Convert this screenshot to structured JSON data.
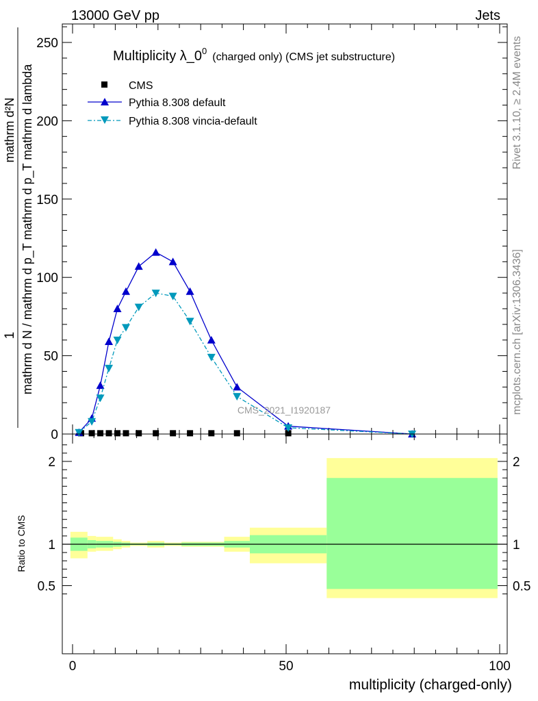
{
  "header": {
    "left": "13000 GeV pp",
    "right": "Jets"
  },
  "side_labels": {
    "rivet": "Rivet 3.1.10, ≥ 2.4M events",
    "mcplots": "mcplots.cern.ch [arXiv:1306.3436]"
  },
  "watermark": "CMS_2021_I1920187",
  "colors": {
    "cms": "#000000",
    "pythia_default": "#0000cc",
    "pythia_vincia": "#0099bb",
    "band_inner": "#99ff99",
    "band_outer": "#ffff99"
  },
  "chart_data": [
    {
      "type": "line",
      "title_main": "Multiplicity λ_0",
      "title_sup": "0",
      "title_rest": "(charged only) (CMS jet substructure)",
      "ylabel_top": "1",
      "ylabel_denom": "mathrm d N / mathrm d p_T mathrm d p_T mathrm d lambda",
      "ylabel_numer": "mathrm d²N",
      "ylim": [
        0,
        262
      ],
      "yticks": [
        0,
        50,
        100,
        150,
        200,
        250
      ],
      "xlim": [
        -2,
        100
      ],
      "legend_position": "top-left",
      "series": [
        {
          "name": "CMS",
          "marker": "square",
          "x": [
            2,
            4.5,
            6.5,
            8.5,
            10.5,
            12.5,
            15.5,
            19.5,
            23.5,
            27.5,
            32.5,
            38.5,
            50.5
          ],
          "y": [
            0.5,
            0.5,
            0.5,
            0.5,
            0.5,
            0.5,
            0.5,
            0.5,
            0.5,
            0.5,
            0.5,
            0.5,
            0.5
          ]
        },
        {
          "name": "Pythia 8.308 default",
          "marker": "triangle-up",
          "x": [
            1.5,
            4.5,
            6.5,
            8.5,
            10.5,
            12.5,
            15.5,
            19.5,
            23.5,
            27.5,
            32.5,
            38.5,
            50.5,
            79.5
          ],
          "y": [
            1,
            10,
            31,
            59,
            80,
            91,
            107,
            116,
            110,
            91,
            60,
            30,
            5,
            0
          ]
        },
        {
          "name": "Pythia 8.308 vincia-default",
          "marker": "triangle-down",
          "x": [
            1.5,
            4.5,
            6.5,
            8.5,
            10.5,
            12.5,
            15.5,
            19.5,
            23.5,
            27.5,
            32.5,
            38.5,
            50.5,
            79.5
          ],
          "y": [
            1,
            8,
            23,
            42,
            60,
            68,
            81,
            90,
            88,
            72,
            49,
            24,
            4,
            0
          ]
        }
      ]
    },
    {
      "type": "area",
      "ylabel": "Ratio to CMS",
      "xlabel": "multiplicity (charged-only)",
      "ylim": [
        0.35,
        2.25
      ],
      "yticks": [
        0.5,
        1,
        2
      ],
      "yticklabels": [
        "0.5",
        "1",
        "2"
      ],
      "xticks": [
        0,
        50,
        100
      ],
      "bins": [
        {
          "lo": -0.5,
          "hi": 3.5,
          "inner": [
            0.92,
            1.08
          ],
          "outer": [
            0.83,
            1.15
          ]
        },
        {
          "lo": 3.5,
          "hi": 5.5,
          "inner": [
            0.95,
            1.05
          ],
          "outer": [
            0.91,
            1.1
          ]
        },
        {
          "lo": 5.5,
          "hi": 9.5,
          "inner": [
            0.96,
            1.04
          ],
          "outer": [
            0.92,
            1.09
          ]
        },
        {
          "lo": 9.5,
          "hi": 11.5,
          "inner": [
            0.97,
            1.03
          ],
          "outer": [
            0.94,
            1.06
          ]
        },
        {
          "lo": 11.5,
          "hi": 13.5,
          "inner": [
            0.98,
            1.02
          ],
          "outer": [
            0.96,
            1.04
          ]
        },
        {
          "lo": 13.5,
          "hi": 17.5,
          "inner": [
            0.99,
            1.01
          ],
          "outer": [
            0.98,
            1.02
          ]
        },
        {
          "lo": 17.5,
          "hi": 21.5,
          "inner": [
            0.98,
            1.02
          ],
          "outer": [
            0.96,
            1.04
          ]
        },
        {
          "lo": 21.5,
          "hi": 25.5,
          "inner": [
            0.99,
            1.01
          ],
          "outer": [
            0.98,
            1.02
          ]
        },
        {
          "lo": 25.5,
          "hi": 35.5,
          "inner": [
            0.98,
            1.02
          ],
          "outer": [
            0.97,
            1.03
          ]
        },
        {
          "lo": 35.5,
          "hi": 41.5,
          "inner": [
            0.96,
            1.04
          ],
          "outer": [
            0.91,
            1.09
          ]
        },
        {
          "lo": 41.5,
          "hi": 59.5,
          "inner": [
            0.89,
            1.11
          ],
          "outer": [
            0.77,
            1.2
          ]
        },
        {
          "lo": 59.5,
          "hi": 99.5,
          "inner": [
            0.46,
            1.8
          ],
          "outer": [
            0.35,
            2.04
          ]
        }
      ]
    }
  ]
}
